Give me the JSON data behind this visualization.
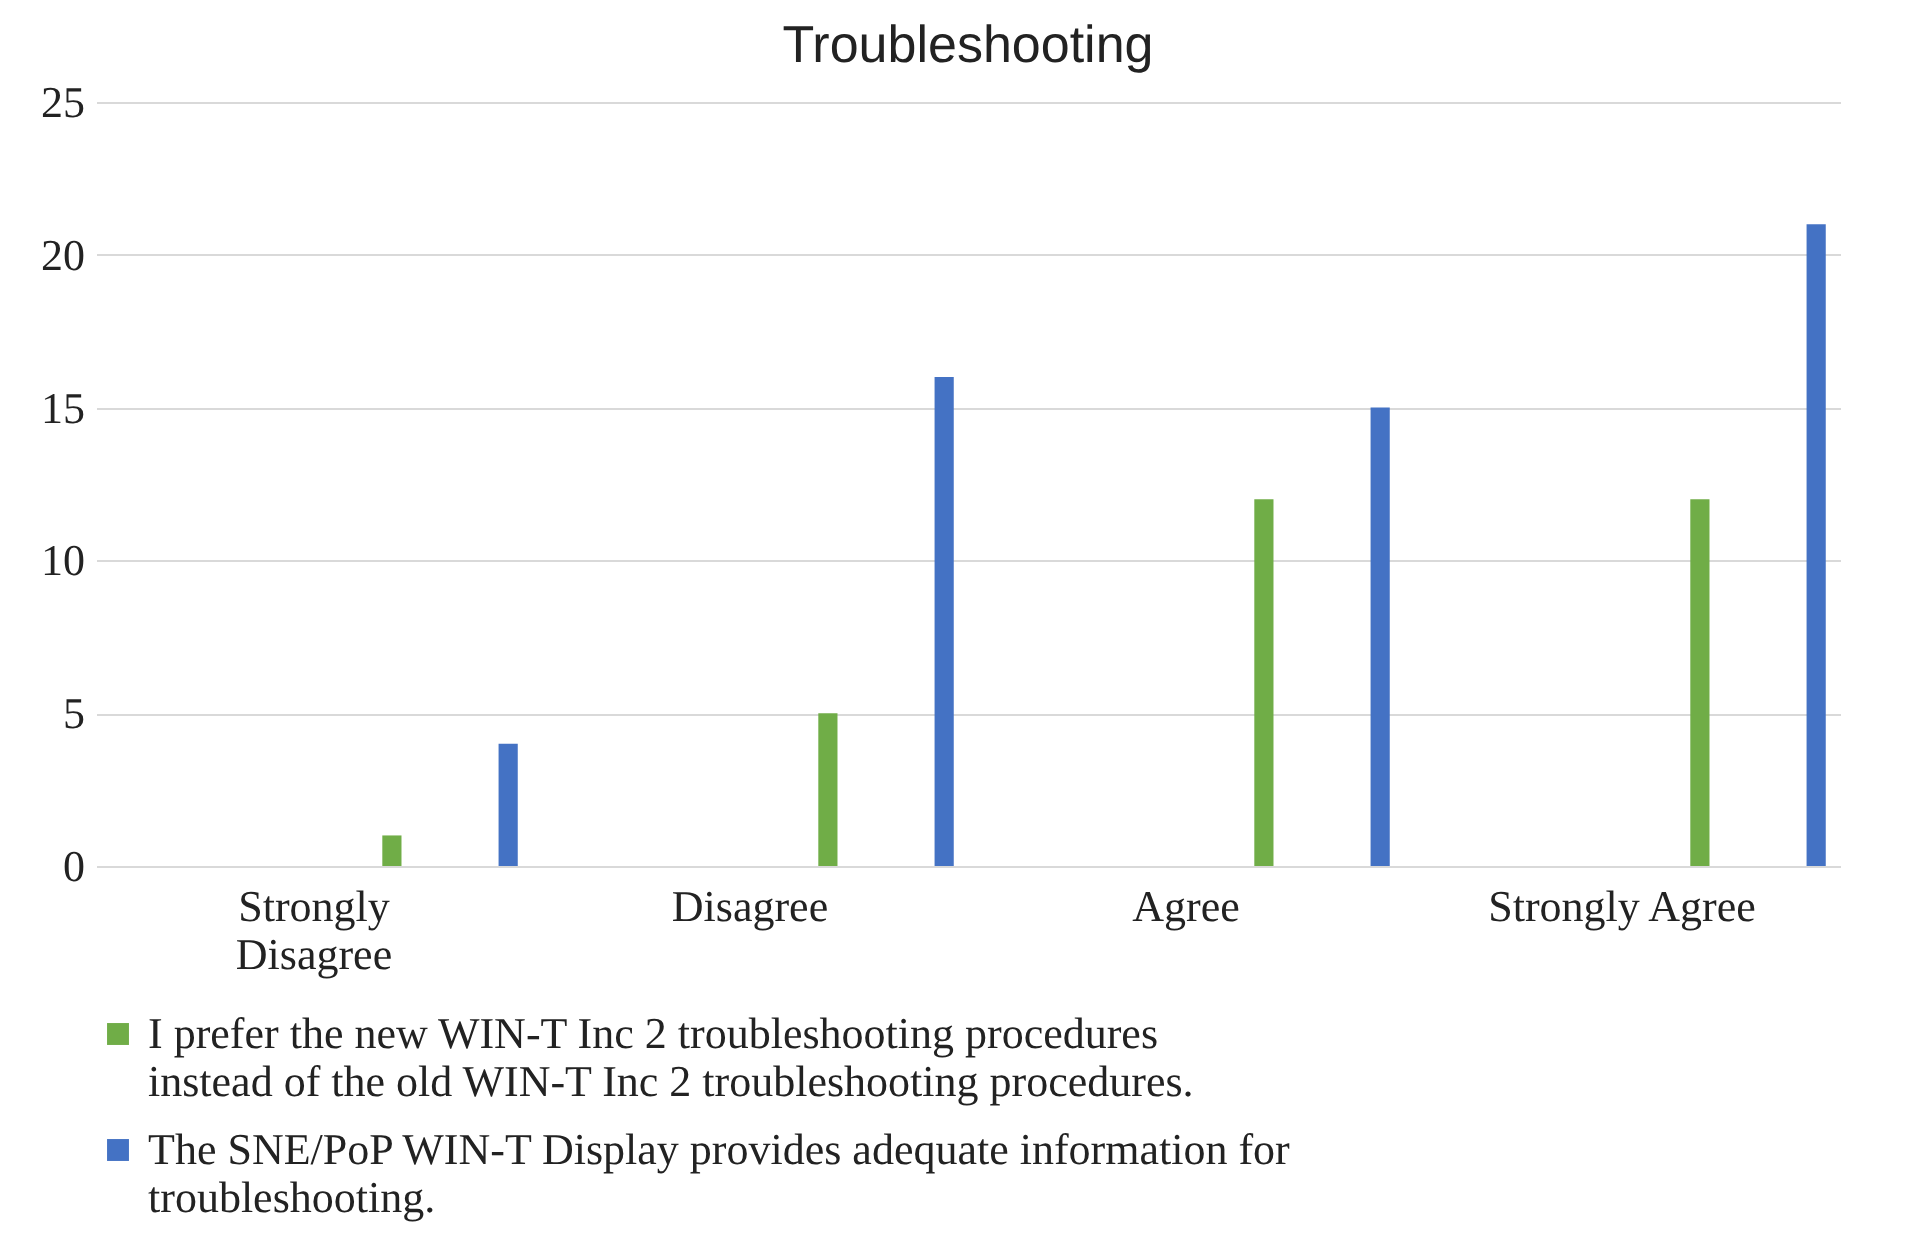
{
  "chart_data": {
    "type": "bar",
    "title": "Troubleshooting",
    "categories": [
      "Strongly Disagree",
      "Disagree",
      "Agree",
      "Strongly Agree"
    ],
    "series": [
      {
        "name": "I prefer the new WIN-T Inc 2 troubleshooting procedures instead of the old WIN-T Inc 2 troubleshooting procedures.",
        "color": "#70ad47",
        "values": [
          1,
          5,
          12,
          12
        ]
      },
      {
        "name": "The SNE/PoP WIN-T Display provides adequate information for troubleshooting.",
        "color": "#4472c4",
        "values": [
          4,
          16,
          15,
          21
        ]
      }
    ],
    "ylim": [
      0,
      25
    ],
    "yticks": [
      0,
      5,
      10,
      15,
      20,
      25
    ],
    "grid": "y",
    "legend": "bottom"
  }
}
